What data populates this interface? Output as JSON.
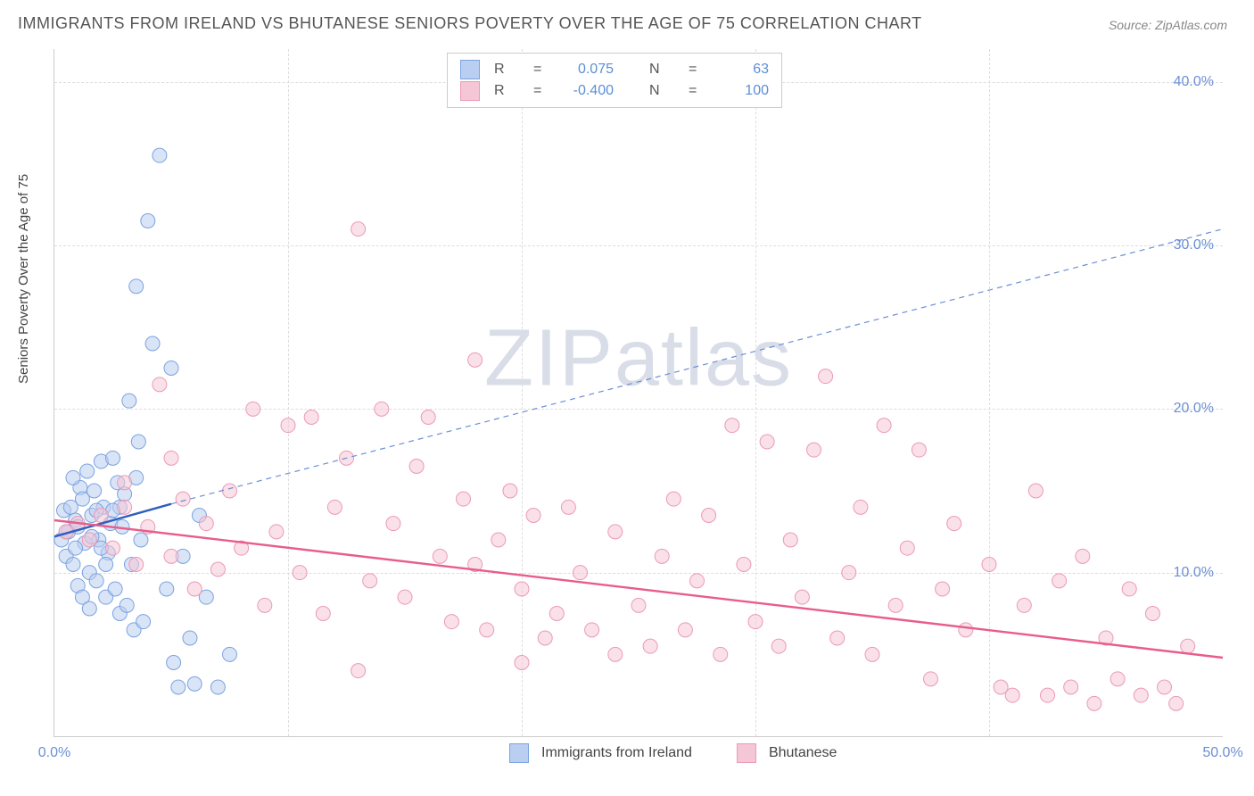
{
  "title": "IMMIGRANTS FROM IRELAND VS BHUTANESE SENIORS POVERTY OVER THE AGE OF 75 CORRELATION CHART",
  "source": "Source: ZipAtlas.com",
  "ylabel": "Seniors Poverty Over the Age of 75",
  "watermark": "ZIPatlas",
  "chart": {
    "type": "scatter",
    "xlim": [
      0,
      50
    ],
    "ylim": [
      0,
      42
    ],
    "x_ticks": [
      0,
      50
    ],
    "x_tick_labels": [
      "0.0%",
      "50.0%"
    ],
    "x_minor_ticks": [
      10,
      20,
      30,
      40
    ],
    "y_ticks": [
      10,
      20,
      30,
      40
    ],
    "y_tick_labels": [
      "10.0%",
      "20.0%",
      "30.0%",
      "40.0%"
    ],
    "grid_color": "#dddddd",
    "background_color": "#ffffff",
    "series": [
      {
        "name": "Immigrants from Ireland",
        "fill": "#b9cef0",
        "stroke": "#7ba3e0",
        "fill_opacity": 0.55,
        "marker_radius": 8,
        "R": "0.075",
        "N": "63",
        "trend": {
          "x1": 0,
          "y1": 12.2,
          "x2": 5,
          "y2": 14.2,
          "stroke": "#2f5fc0",
          "width": 2.4
        },
        "trend_ext": {
          "x1": 5,
          "y1": 14.2,
          "x2": 50,
          "y2": 31,
          "stroke": "#6b8fd4",
          "width": 1.2,
          "dash": "6 5"
        },
        "points": [
          [
            0.3,
            12
          ],
          [
            0.4,
            13.8
          ],
          [
            0.5,
            11
          ],
          [
            0.6,
            12.5
          ],
          [
            0.7,
            14
          ],
          [
            0.8,
            10.5
          ],
          [
            0.9,
            13.2
          ],
          [
            1.0,
            12.8
          ],
          [
            1.1,
            15.2
          ],
          [
            1.2,
            14.5
          ],
          [
            1.3,
            11.8
          ],
          [
            1.4,
            16.2
          ],
          [
            1.5,
            10
          ],
          [
            1.6,
            13.5
          ],
          [
            1.7,
            15
          ],
          [
            1.8,
            9.5
          ],
          [
            1.9,
            12
          ],
          [
            2.0,
            16.8
          ],
          [
            2.1,
            14
          ],
          [
            2.2,
            8.5
          ],
          [
            2.3,
            11.2
          ],
          [
            2.4,
            13
          ],
          [
            2.5,
            17
          ],
          [
            2.6,
            9
          ],
          [
            2.7,
            15.5
          ],
          [
            2.8,
            7.5
          ],
          [
            2.9,
            12.8
          ],
          [
            3.0,
            14.8
          ],
          [
            3.1,
            8
          ],
          [
            3.2,
            20.5
          ],
          [
            3.3,
            10.5
          ],
          [
            3.4,
            6.5
          ],
          [
            3.5,
            27.5
          ],
          [
            3.6,
            18
          ],
          [
            3.7,
            12
          ],
          [
            3.8,
            7
          ],
          [
            4.0,
            31.5
          ],
          [
            4.2,
            24
          ],
          [
            4.5,
            35.5
          ],
          [
            4.8,
            9
          ],
          [
            5.0,
            22.5
          ],
          [
            5.1,
            4.5
          ],
          [
            5.3,
            3
          ],
          [
            5.5,
            11
          ],
          [
            5.8,
            6
          ],
          [
            6.0,
            3.2
          ],
          [
            6.2,
            13.5
          ],
          [
            6.5,
            8.5
          ],
          [
            7.0,
            3
          ],
          [
            7.5,
            5
          ],
          [
            1.0,
            9.2
          ],
          [
            1.2,
            8.5
          ],
          [
            1.5,
            7.8
          ],
          [
            1.8,
            13.8
          ],
          [
            0.8,
            15.8
          ],
          [
            0.5,
            12.5
          ],
          [
            2.2,
            10.5
          ],
          [
            2.8,
            14
          ],
          [
            3.5,
            15.8
          ],
          [
            0.9,
            11.5
          ],
          [
            1.6,
            12.2
          ],
          [
            2.0,
            11.5
          ],
          [
            2.5,
            13.8
          ]
        ]
      },
      {
        "name": "Bhutanese",
        "fill": "#f5c6d6",
        "stroke": "#eb9ab5",
        "fill_opacity": 0.55,
        "marker_radius": 8,
        "R": "-0.400",
        "N": "100",
        "trend": {
          "x1": 0,
          "y1": 13.2,
          "x2": 50,
          "y2": 4.8,
          "stroke": "#e85d8a",
          "width": 2.4
        },
        "points": [
          [
            0.5,
            12.5
          ],
          [
            1,
            13
          ],
          [
            1.5,
            12
          ],
          [
            2,
            13.5
          ],
          [
            2.5,
            11.5
          ],
          [
            3,
            14
          ],
          [
            3.5,
            10.5
          ],
          [
            4,
            12.8
          ],
          [
            4.5,
            21.5
          ],
          [
            5,
            11
          ],
          [
            5.5,
            14.5
          ],
          [
            6,
            9
          ],
          [
            6.5,
            13
          ],
          [
            7,
            10.2
          ],
          [
            7.5,
            15
          ],
          [
            8,
            11.5
          ],
          [
            8.5,
            20
          ],
          [
            9,
            8
          ],
          [
            9.5,
            12.5
          ],
          [
            10,
            19
          ],
          [
            10.5,
            10
          ],
          [
            11,
            19.5
          ],
          [
            11.5,
            7.5
          ],
          [
            12,
            14
          ],
          [
            12.5,
            17
          ],
          [
            13,
            31
          ],
          [
            13.5,
            9.5
          ],
          [
            14,
            20
          ],
          [
            14.5,
            13
          ],
          [
            15,
            8.5
          ],
          [
            15.5,
            16.5
          ],
          [
            16,
            19.5
          ],
          [
            16.5,
            11
          ],
          [
            17,
            7
          ],
          [
            17.5,
            14.5
          ],
          [
            18,
            10.5
          ],
          [
            18,
            23
          ],
          [
            18.5,
            6.5
          ],
          [
            19,
            12
          ],
          [
            19.5,
            15
          ],
          [
            20,
            9
          ],
          [
            20.5,
            13.5
          ],
          [
            21,
            6
          ],
          [
            21.5,
            7.5
          ],
          [
            22,
            14
          ],
          [
            22.5,
            10
          ],
          [
            23,
            6.5
          ],
          [
            24,
            12.5
          ],
          [
            25,
            8
          ],
          [
            25.5,
            5.5
          ],
          [
            26,
            11
          ],
          [
            26.5,
            14.5
          ],
          [
            27,
            6.5
          ],
          [
            27.5,
            9.5
          ],
          [
            28,
            13.5
          ],
          [
            28.5,
            5
          ],
          [
            29,
            19
          ],
          [
            29.5,
            10.5
          ],
          [
            30,
            7
          ],
          [
            30.5,
            18
          ],
          [
            31,
            5.5
          ],
          [
            31.5,
            12
          ],
          [
            32,
            8.5
          ],
          [
            32.5,
            17.5
          ],
          [
            33,
            22
          ],
          [
            33.5,
            6
          ],
          [
            34,
            10
          ],
          [
            34.5,
            14
          ],
          [
            35,
            5
          ],
          [
            35.5,
            19
          ],
          [
            36,
            8
          ],
          [
            36.5,
            11.5
          ],
          [
            37,
            17.5
          ],
          [
            37.5,
            3.5
          ],
          [
            38,
            9
          ],
          [
            38.5,
            13
          ],
          [
            39,
            6.5
          ],
          [
            40,
            10.5
          ],
          [
            40.5,
            3
          ],
          [
            41,
            2.5
          ],
          [
            41.5,
            8
          ],
          [
            42,
            15
          ],
          [
            42.5,
            2.5
          ],
          [
            43,
            9.5
          ],
          [
            43.5,
            3
          ],
          [
            44,
            11
          ],
          [
            44.5,
            2
          ],
          [
            45,
            6
          ],
          [
            45.5,
            3.5
          ],
          [
            46,
            9
          ],
          [
            46.5,
            2.5
          ],
          [
            47,
            7.5
          ],
          [
            47.5,
            3
          ],
          [
            48,
            2
          ],
          [
            48.5,
            5.5
          ],
          [
            3,
            15.5
          ],
          [
            5,
            17
          ],
          [
            13,
            4
          ],
          [
            20,
            4.5
          ],
          [
            24,
            5
          ]
        ]
      }
    ]
  },
  "legend_bottom": [
    {
      "label": "Immigrants from Ireland",
      "fill": "#b9cef0",
      "stroke": "#7ba3e0"
    },
    {
      "label": "Bhutanese",
      "fill": "#f5c6d6",
      "stroke": "#eb9ab5"
    }
  ]
}
